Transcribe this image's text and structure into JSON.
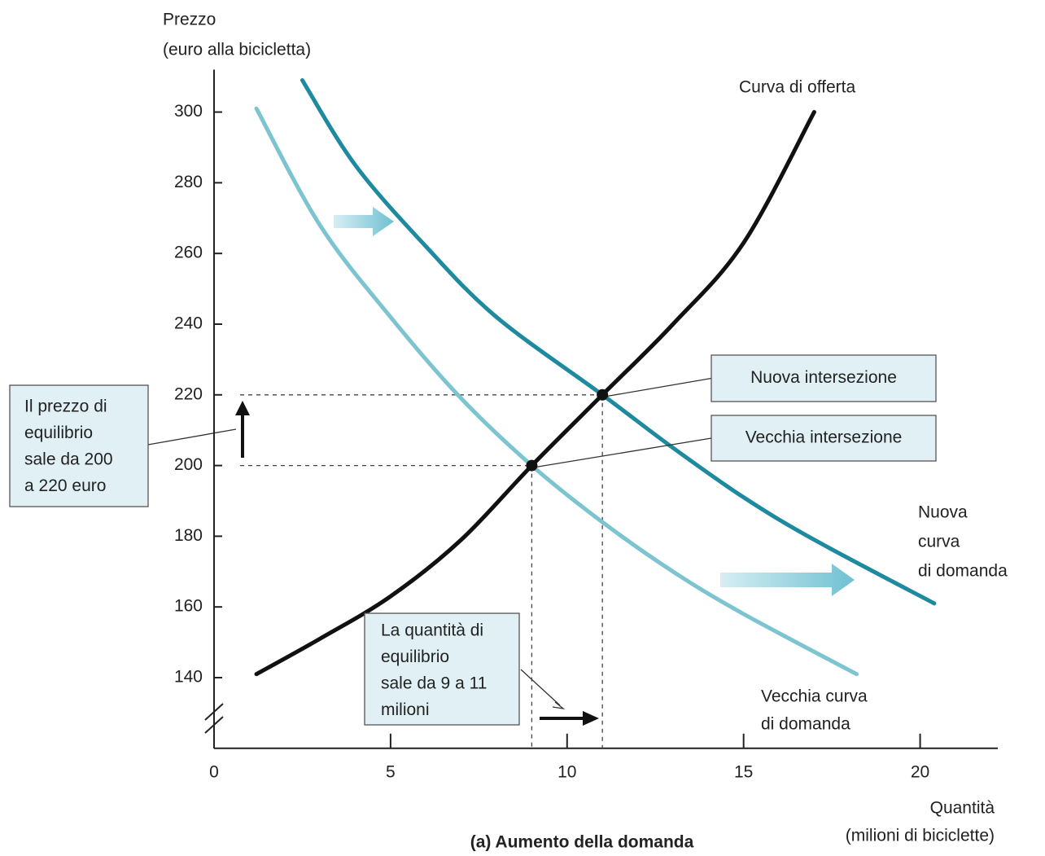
{
  "chart_data": {
    "type": "line",
    "title": "(a) Aumento della domanda",
    "y_label": [
      "Prezzo",
      "(euro alla bicicletta)"
    ],
    "x_label": [
      "Quantità",
      "(milioni di biciclette)"
    ],
    "xlim": [
      0,
      22.2
    ],
    "ylim": [
      120,
      312
    ],
    "xticks": [
      0,
      5,
      10,
      15,
      20
    ],
    "yticks": [
      140,
      160,
      180,
      200,
      220,
      240,
      260,
      280,
      300
    ],
    "series": [
      {
        "name": "Curva di offerta",
        "label_lines": [
          "Curva di offerta"
        ],
        "color": "#111111",
        "x": [
          1.2,
          3,
          5,
          7,
          9,
          11,
          13,
          15,
          17
        ],
        "values": [
          141,
          151,
          163,
          179,
          200,
          220,
          240,
          263,
          300
        ]
      },
      {
        "name": "Vecchia curva di domanda",
        "label_lines": [
          "Vecchia curva",
          "di domanda"
        ],
        "color": "#7cc4d0",
        "x": [
          1.2,
          3,
          5,
          7,
          9,
          11,
          13,
          15,
          18.2
        ],
        "values": [
          301,
          268,
          242,
          219,
          200,
          184,
          170,
          158,
          141
        ]
      },
      {
        "name": "Nuova curva di domanda",
        "label_lines": [
          "Nuova",
          "curva",
          "di domanda"
        ],
        "color": "#1e8aa0",
        "x": [
          2.5,
          4,
          6,
          8,
          11,
          13,
          15,
          17,
          20.4
        ],
        "values": [
          309,
          285,
          262,
          242,
          220,
          205,
          191,
          179,
          161
        ]
      }
    ],
    "points": [
      {
        "label": "Vecchia intersezione",
        "x": 9,
        "y": 200
      },
      {
        "label": "Nuova intersezione",
        "x": 11,
        "y": 220
      }
    ],
    "annotations": [
      {
        "lines": [
          "Il prezzo di",
          "equilibrio",
          "sale da 200",
          "a 220 euro"
        ]
      },
      {
        "lines": [
          "La quantità di",
          "equilibrio",
          "sale da 9 a 11",
          "milioni"
        ]
      }
    ]
  }
}
